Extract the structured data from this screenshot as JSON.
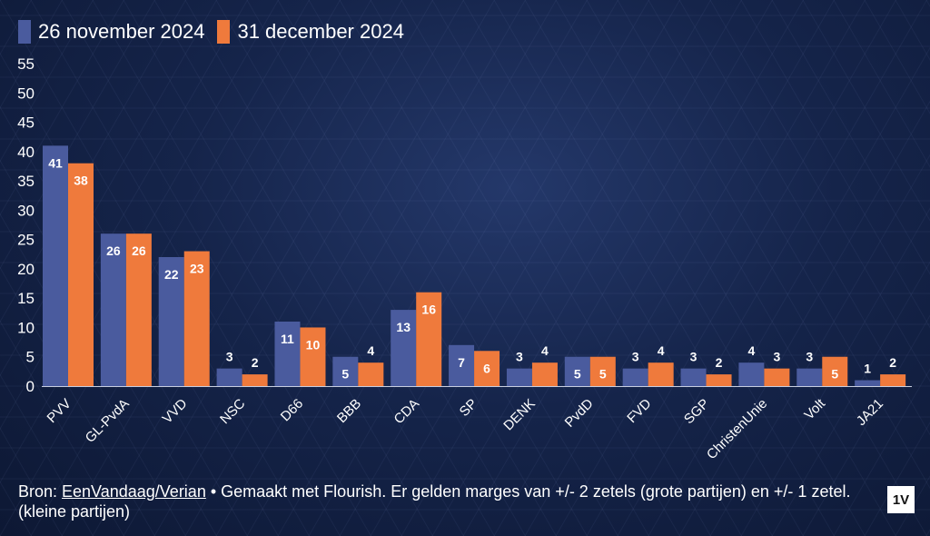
{
  "chart_data": {
    "type": "bar",
    "categories": [
      "PVV",
      "GL-PvdA",
      "VVD",
      "NSC",
      "D66",
      "BBB",
      "CDA",
      "SP",
      "DENK",
      "PvdD",
      "FVD",
      "SGP",
      "ChristenUnie",
      "Volt",
      "JA21"
    ],
    "series": [
      {
        "name": "26 november 2024",
        "color": "#4a5b9e",
        "values": [
          41,
          26,
          22,
          3,
          11,
          5,
          13,
          7,
          3,
          5,
          3,
          3,
          4,
          3,
          1
        ]
      },
      {
        "name": "31 december 2024",
        "color": "#ef7a3c",
        "values": [
          38,
          26,
          23,
          2,
          10,
          4,
          16,
          6,
          4,
          5,
          4,
          2,
          3,
          5,
          2
        ]
      }
    ],
    "ylim": [
      0,
      55
    ],
    "yticks": [
      0,
      5,
      10,
      15,
      20,
      25,
      30,
      35,
      40,
      45,
      50,
      55
    ],
    "legend_position": "top-left",
    "grid": false
  },
  "source": {
    "prefix": "Bron: ",
    "link": "EenVandaag/Verian",
    "text": " • Gemaakt met Flourish. Er gelden marges van +/- 2 zetels (grote partijen) en +/- 1 zetel. (kleine partijen)"
  },
  "logo": "1V"
}
